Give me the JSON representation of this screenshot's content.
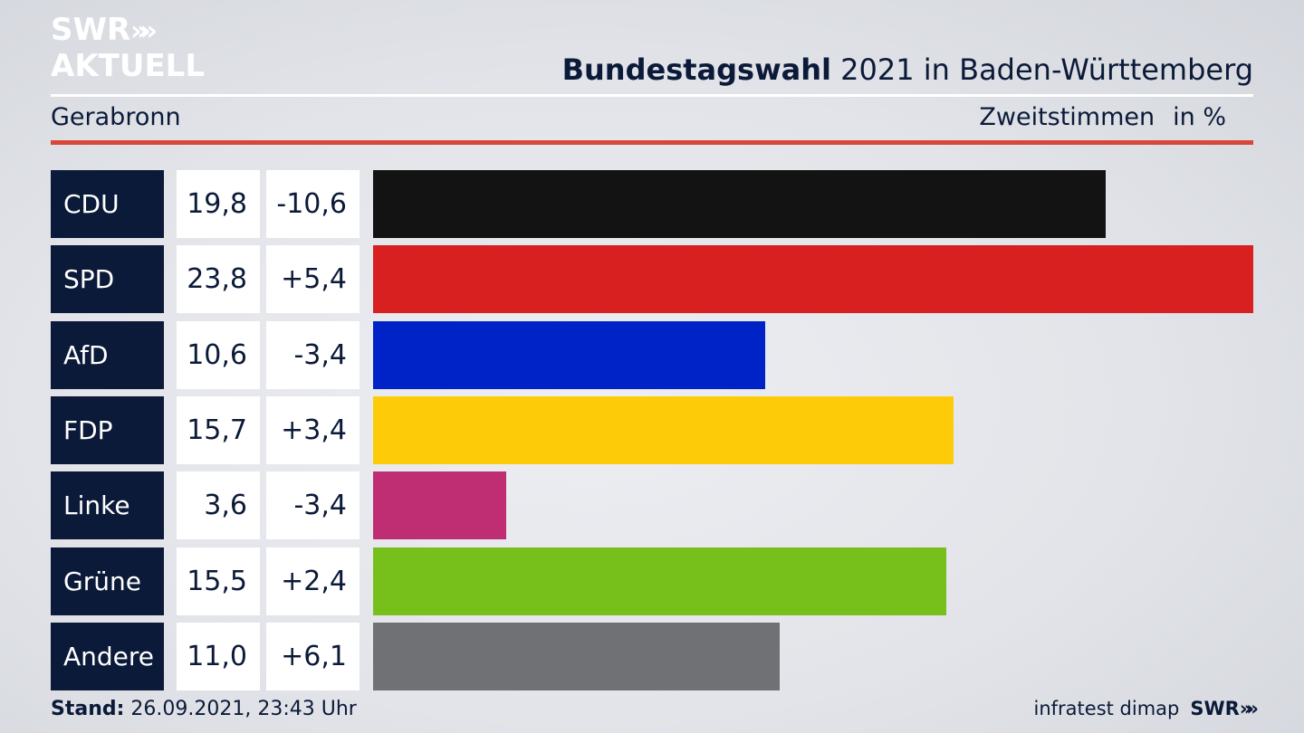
{
  "branding": {
    "logo_line1": "SWR",
    "logo_line2": "AKTUELL",
    "logo_chevrons": "»",
    "footer_source": "infratest dimap",
    "footer_logo": "SWR",
    "footer_chevrons": "»"
  },
  "header": {
    "title_bold": "Bundestagswahl",
    "title_rest": "2021 in Baden-Württemberg",
    "region": "Gerabronn",
    "measure": "Zweitstimmen",
    "unit": "in %"
  },
  "footer": {
    "stand_label": "Stand:",
    "stand_value": "26.09.2021, 23:43 Uhr"
  },
  "chart_data": {
    "type": "bar",
    "orientation": "horizontal",
    "title": "Bundestagswahl 2021 in Baden-Württemberg",
    "subtitle": "Gerabronn",
    "xlabel": "Zweitstimmen",
    "ylabel": "in %",
    "xlim": [
      0,
      23.8
    ],
    "grid": false,
    "categories": [
      "CDU",
      "SPD",
      "AfD",
      "FDP",
      "Linke",
      "Grüne",
      "Andere"
    ],
    "values": [
      19.8,
      23.8,
      10.6,
      15.7,
      3.6,
      15.5,
      11.0
    ],
    "value_labels": [
      "19,8",
      "23,8",
      "10,6",
      "15,7",
      "3,6",
      "15,5",
      "11,0"
    ],
    "change_labels": [
      "-10,6",
      "+5,4",
      "-3,4",
      "+3,4",
      "-3,4",
      "+2,4",
      "+6,1"
    ],
    "changes": [
      -10.6,
      5.4,
      -3.4,
      3.4,
      -3.4,
      2.4,
      6.1
    ],
    "colors": [
      "#131313",
      "#d7201f",
      "#0023c8",
      "#fecb09",
      "#bf2d72",
      "#77bf1a",
      "#707174"
    ]
  }
}
